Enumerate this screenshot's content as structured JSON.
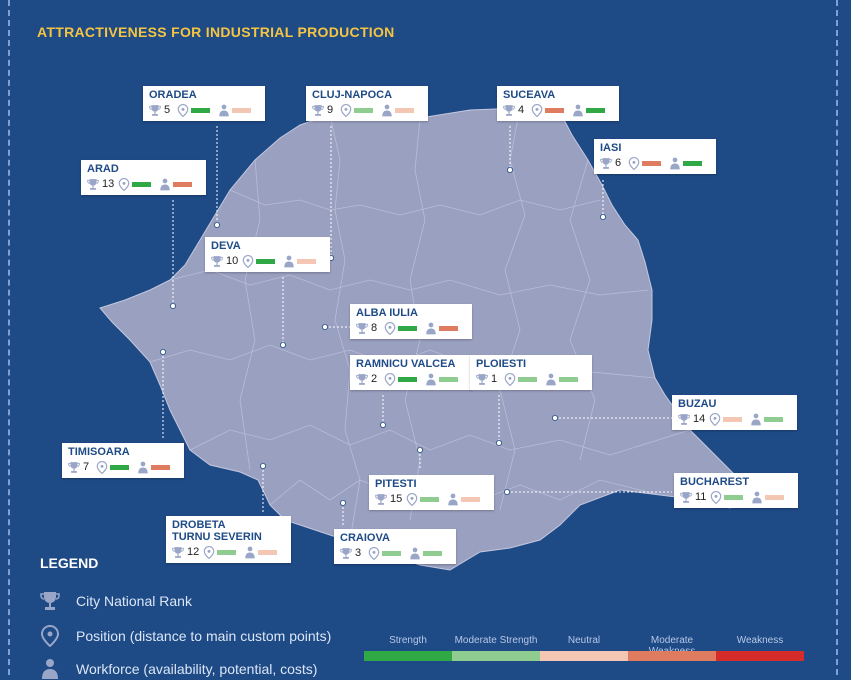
{
  "title": "ATTRACTIVENESS FOR INDUSTRIAL PRODUCTION",
  "colors": {
    "strength": "#2fa845",
    "moderate_strength": "#8fcc8f",
    "neutral": "#f4c7b4",
    "moderate_weakness": "#df7b5f",
    "weakness": "#d62b2b"
  },
  "cities": [
    {
      "name": "ORADEA",
      "rank": "5",
      "position": "strength",
      "workforce": "neutral"
    },
    {
      "name": "CLUJ-NAPOCA",
      "rank": "9",
      "position": "moderate_strength",
      "workforce": "neutral"
    },
    {
      "name": "SUCEAVA",
      "rank": "4",
      "position": "moderate_weakness",
      "workforce": "strength"
    },
    {
      "name": "IASI",
      "rank": "6",
      "position": "moderate_weakness",
      "workforce": "strength"
    },
    {
      "name": "ARAD",
      "rank": "13",
      "position": "strength",
      "workforce": "moderate_weakness"
    },
    {
      "name": "DEVA",
      "rank": "10",
      "position": "strength",
      "workforce": "neutral"
    },
    {
      "name": "ALBA IULIA",
      "rank": "8",
      "position": "strength",
      "workforce": "moderate_weakness"
    },
    {
      "name": "RAMNICU VALCEA",
      "rank": "2",
      "position": "strength",
      "workforce": "moderate_strength"
    },
    {
      "name": "PLOIESTI",
      "rank": "1",
      "position": "moderate_strength",
      "workforce": "moderate_strength"
    },
    {
      "name": "BUZAU",
      "rank": "14",
      "position": "neutral",
      "workforce": "moderate_strength"
    },
    {
      "name": "TIMISOARA",
      "rank": "7",
      "position": "strength",
      "workforce": "moderate_weakness"
    },
    {
      "name": "PITESTI",
      "rank": "15",
      "position": "moderate_strength",
      "workforce": "neutral"
    },
    {
      "name": "BUCHAREST",
      "rank": "11",
      "position": "moderate_strength",
      "workforce": "neutral"
    },
    {
      "name": "DROBETA\nTURNU SEVERIN",
      "rank": "12",
      "position": "moderate_strength",
      "workforce": "neutral"
    },
    {
      "name": "CRAIOVA",
      "rank": "3",
      "position": "moderate_strength",
      "workforce": "moderate_strength"
    }
  ],
  "legend": {
    "title": "LEGEND",
    "items": [
      {
        "icon": "trophy-icon",
        "label": "City National Rank"
      },
      {
        "icon": "pin-icon",
        "label": "Position (distance to main custom points)"
      },
      {
        "icon": "person-icon",
        "label": "Workforce (availability, potential, costs)"
      }
    ],
    "scale": [
      {
        "label": "Strength",
        "color_key": "strength"
      },
      {
        "label": "Moderate Strength",
        "color_key": "moderate_strength"
      },
      {
        "label": "Neutral",
        "color_key": "neutral"
      },
      {
        "label": "Moderate Weakness",
        "color_key": "moderate_weakness"
      },
      {
        "label": "Weakness",
        "color_key": "weakness"
      }
    ]
  }
}
